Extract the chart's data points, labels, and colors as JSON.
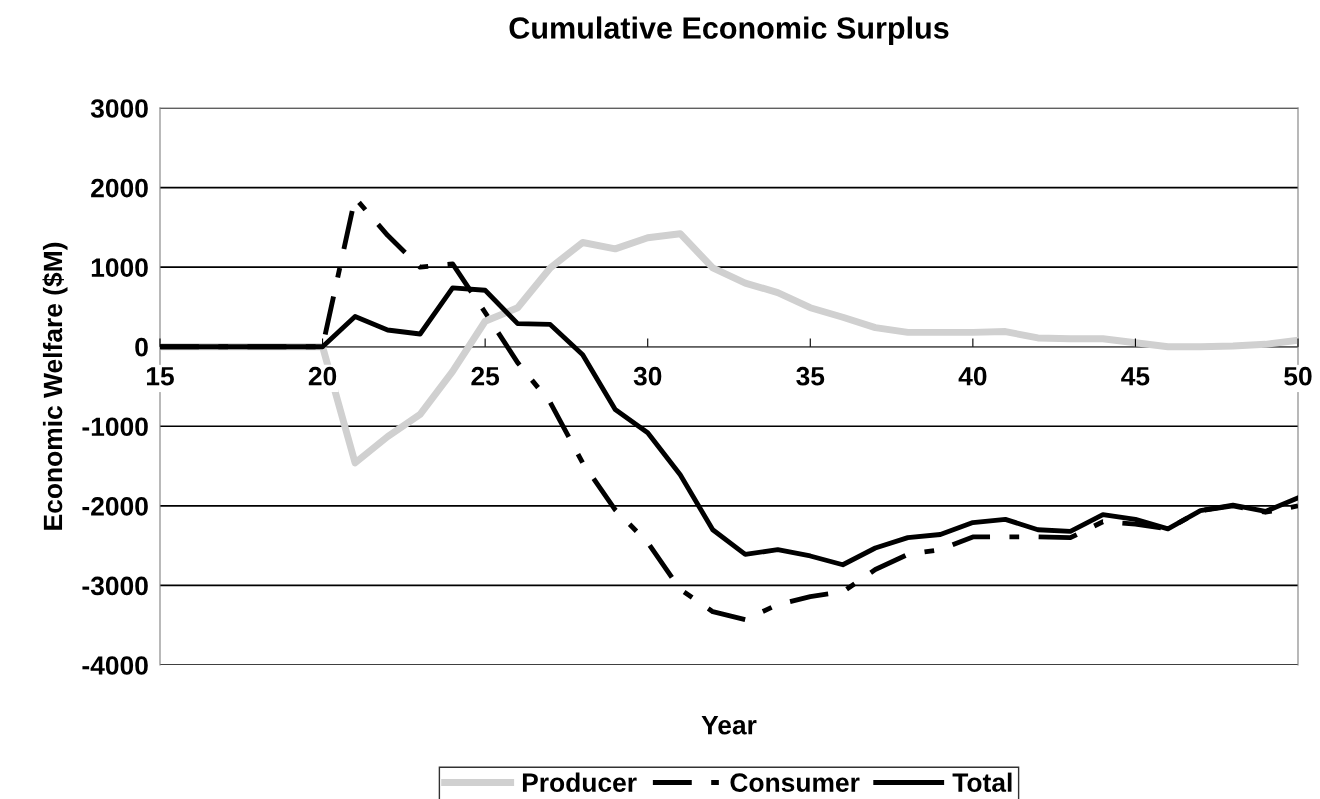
{
  "chart_data": {
    "type": "line",
    "title": "Cumulative Economic Surplus",
    "xlabel": "Year",
    "ylabel": "Economic Welfare ($M)",
    "x": [
      15,
      16,
      17,
      18,
      19,
      20,
      21,
      22,
      23,
      24,
      25,
      26,
      27,
      28,
      29,
      30,
      31,
      32,
      33,
      34,
      35,
      36,
      37,
      38,
      39,
      40,
      41,
      42,
      43,
      44,
      45,
      46,
      47,
      48,
      49,
      50
    ],
    "series": [
      {
        "name": "Producer",
        "color": "#d0d0d0",
        "line_style": "solid",
        "values": [
          0,
          0,
          0,
          0,
          0,
          0,
          -1460,
          -1130,
          -850,
          -310,
          320,
          490,
          990,
          1310,
          1230,
          1370,
          1420,
          990,
          800,
          680,
          490,
          370,
          240,
          180,
          180,
          180,
          190,
          110,
          100,
          100,
          50,
          0,
          0,
          10,
          30,
          80
        ]
      },
      {
        "name": "Consumer",
        "color": "#000000",
        "line_style": "dashed",
        "values": [
          0,
          0,
          0,
          0,
          0,
          0,
          1870,
          1400,
          1000,
          1040,
          430,
          -200,
          -700,
          -1460,
          -2050,
          -2460,
          -3050,
          -3330,
          -3430,
          -3240,
          -3140,
          -3080,
          -2800,
          -2610,
          -2550,
          -2390,
          -2390,
          -2390,
          -2400,
          -2200,
          -2230,
          -2290,
          -2060,
          -2000,
          -2080,
          -2000
        ]
      },
      {
        "name": "Total",
        "color": "#000000",
        "line_style": "solid",
        "values": [
          0,
          0,
          0,
          0,
          0,
          0,
          380,
          210,
          160,
          740,
          710,
          290,
          280,
          -100,
          -790,
          -1080,
          -1610,
          -2300,
          -2610,
          -2550,
          -2630,
          -2740,
          -2530,
          -2400,
          -2360,
          -2210,
          -2170,
          -2300,
          -2320,
          -2110,
          -2170,
          -2290,
          -2060,
          -1990,
          -2070,
          -1900
        ]
      }
    ],
    "xlim": [
      15,
      50
    ],
    "xticks": [
      15,
      20,
      25,
      30,
      35,
      40,
      45,
      50
    ],
    "ylim": [
      -4000,
      3000
    ],
    "yticks": [
      -4000,
      -3000,
      -2000,
      -1000,
      0,
      1000,
      2000,
      3000
    ],
    "grid": "y",
    "legend": "bottom",
    "marker": "none"
  }
}
